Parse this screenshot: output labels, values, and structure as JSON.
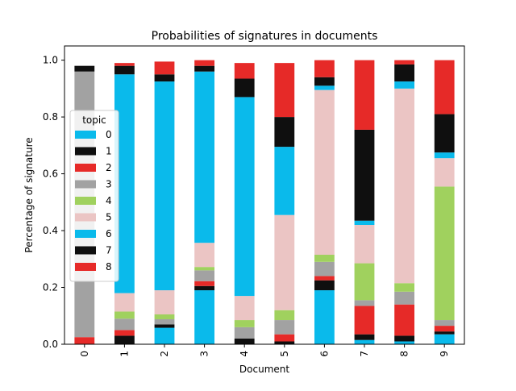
{
  "chart_data": {
    "type": "bar",
    "stacked": true,
    "title": "Probabilities of signatures in documents",
    "xlabel": "Document",
    "ylabel": "Percentage of signature",
    "ylim": [
      0,
      1.05
    ],
    "yticks": [
      "0.0",
      "0.2",
      "0.4",
      "0.6",
      "0.8",
      "1.0"
    ],
    "categories": [
      "0",
      "1",
      "2",
      "3",
      "4",
      "5",
      "6",
      "7",
      "8",
      "9"
    ],
    "legend": {
      "title": "topic",
      "position": "center-left"
    },
    "series": [
      {
        "name": "0",
        "color": "#0ABAEB",
        "values": [
          0.0,
          0.0,
          0.0,
          0.0,
          0.0,
          0.0,
          0.0,
          0.015,
          0.01,
          0.035
        ]
      },
      {
        "name": "1",
        "color": "#0F0F0F",
        "values": [
          0.0,
          0.03,
          0.0,
          0.0,
          0.02,
          0.01,
          0.0,
          0.02,
          0.02,
          0.01
        ]
      },
      {
        "name": "2",
        "color": "#E62A28",
        "values": [
          0.025,
          0.02,
          0.0,
          0.0,
          0.0,
          0.025,
          0.0,
          0.1,
          0.11,
          0.02
        ]
      },
      {
        "name": "3",
        "color": "#A2A2A2",
        "values": [
          0.935,
          0.04,
          0.0,
          0.0,
          0.04,
          0.05,
          0.0,
          0.02,
          0.045,
          0.02
        ]
      },
      {
        "name": "4",
        "color": "#A0D15E",
        "values": [
          0.0,
          0.025,
          0.0,
          0.0,
          0.025,
          0.035,
          0.0,
          0.13,
          0.03,
          0.47
        ]
      },
      {
        "name": "5",
        "color": "#EBC5C4",
        "values": [
          0.0,
          0.065,
          0.0,
          0.0,
          0.085,
          0.335,
          0.0,
          0.135,
          0.685,
          0.1
        ]
      },
      {
        "name": "6",
        "color": "#0ABAEB",
        "values": [
          0.0,
          0.77,
          0.0,
          0.0,
          0.7,
          0.24,
          0.0,
          0.015,
          0.025,
          0.02
        ]
      },
      {
        "name": "7",
        "color": "#0F0F0F",
        "values": [
          0.02,
          0.03,
          0.0,
          0.0,
          0.065,
          0.105,
          0.0,
          0.32,
          0.06,
          0.135
        ]
      },
      {
        "name": "8",
        "color": "#E62A28",
        "values": [
          0.0,
          0.01,
          0.0,
          0.0,
          0.055,
          0.19,
          0.0,
          0.245,
          0.015,
          0.19
        ]
      }
    ],
    "stacks_explicit": {
      "2": [
        0.058,
        0.012,
        0.0,
        0.018,
        0.017,
        0.085,
        0.735,
        0.025,
        0.045
      ],
      "3": [
        0.19,
        0.015,
        0.017,
        0.038,
        0.012,
        0.085,
        0.603,
        0.02,
        0.02
      ],
      "6": [
        0.19,
        0.035,
        0.015,
        0.05,
        0.025,
        0.58,
        0.015,
        0.03,
        0.06
      ]
    }
  }
}
